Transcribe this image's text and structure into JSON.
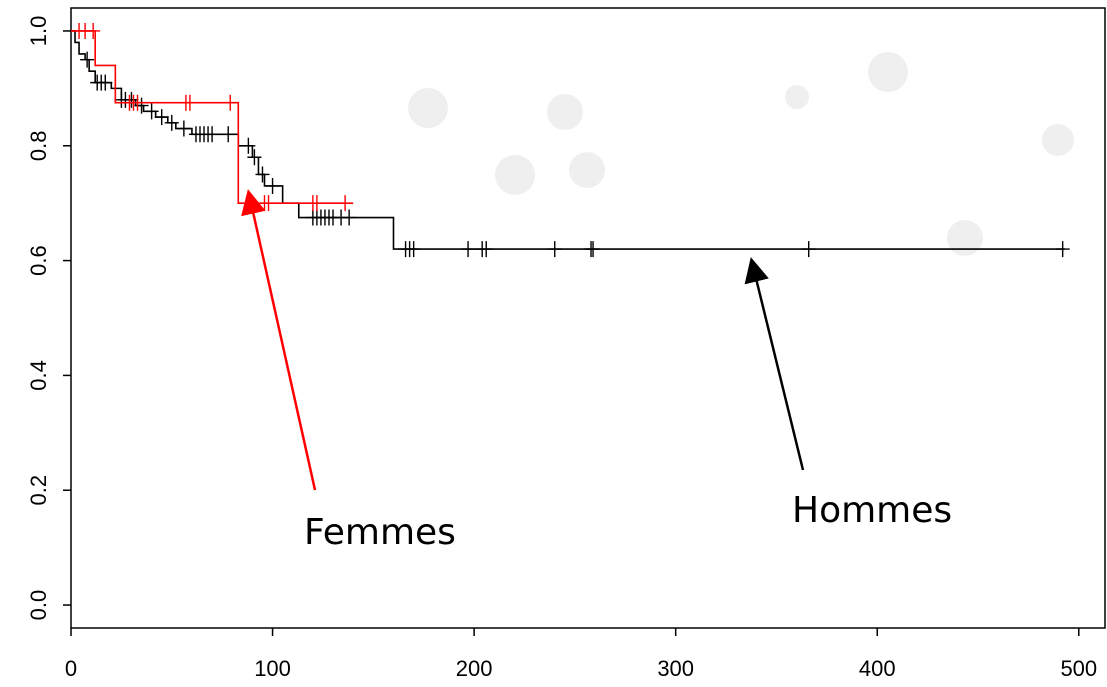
{
  "chart_data": {
    "type": "survival",
    "xlim": [
      0,
      513
    ],
    "ylim": [
      -0.04,
      1.04
    ],
    "xticks": [
      0,
      100,
      200,
      300,
      400,
      500
    ],
    "yticks": [
      {
        "value": 0,
        "label": "0.0"
      },
      {
        "value": 0.2,
        "label": "0.2"
      },
      {
        "value": 0.4,
        "label": "0.4"
      },
      {
        "value": 0.6,
        "label": "0.6"
      },
      {
        "value": 0.8,
        "label": "0.8"
      },
      {
        "value": 1,
        "label": "1.0"
      }
    ],
    "series": [
      {
        "name": "Hommes",
        "color": "#000000",
        "x": [
          0,
          2,
          4,
          7,
          9,
          12,
          20,
          25,
          32,
          36,
          42,
          48,
          52,
          60,
          83,
          90,
          93,
          96,
          105,
          113,
          160,
          493
        ],
        "values": [
          1.0,
          0.98,
          0.96,
          0.95,
          0.93,
          0.91,
          0.9,
          0.88,
          0.87,
          0.86,
          0.85,
          0.84,
          0.83,
          0.82,
          0.8,
          0.78,
          0.75,
          0.73,
          0.7,
          0.675,
          0.62,
          0.62
        ],
        "censored_x": [
          8,
          13,
          15,
          17,
          25,
          27,
          30,
          35,
          40,
          45,
          50,
          56,
          62,
          64,
          66,
          68,
          70,
          78,
          88,
          91,
          95,
          100,
          120,
          122,
          124,
          126,
          128,
          130,
          134,
          138,
          166,
          168,
          170,
          197,
          204,
          206,
          240,
          258,
          259,
          366,
          492
        ],
        "censored_values": [
          0.95,
          0.91,
          0.91,
          0.91,
          0.88,
          0.88,
          0.88,
          0.87,
          0.86,
          0.85,
          0.84,
          0.83,
          0.82,
          0.82,
          0.82,
          0.82,
          0.82,
          0.82,
          0.8,
          0.78,
          0.75,
          0.73,
          0.675,
          0.675,
          0.675,
          0.675,
          0.675,
          0.675,
          0.675,
          0.675,
          0.62,
          0.62,
          0.62,
          0.62,
          0.62,
          0.62,
          0.62,
          0.62,
          0.62,
          0.62,
          0.62
        ]
      },
      {
        "name": "Femmes",
        "color": "#ff0000",
        "x": [
          0,
          12,
          22,
          83,
          140
        ],
        "values": [
          1.0,
          0.94,
          0.875,
          0.7,
          0.7
        ],
        "censored_x": [
          4,
          7,
          11,
          29,
          31,
          33,
          57,
          59,
          79,
          96,
          98,
          120,
          122,
          136
        ],
        "censored_values": [
          1.0,
          1.0,
          1.0,
          0.875,
          0.875,
          0.875,
          0.875,
          0.875,
          0.875,
          0.7,
          0.7,
          0.7,
          0.7,
          0.7
        ]
      }
    ]
  }
}
